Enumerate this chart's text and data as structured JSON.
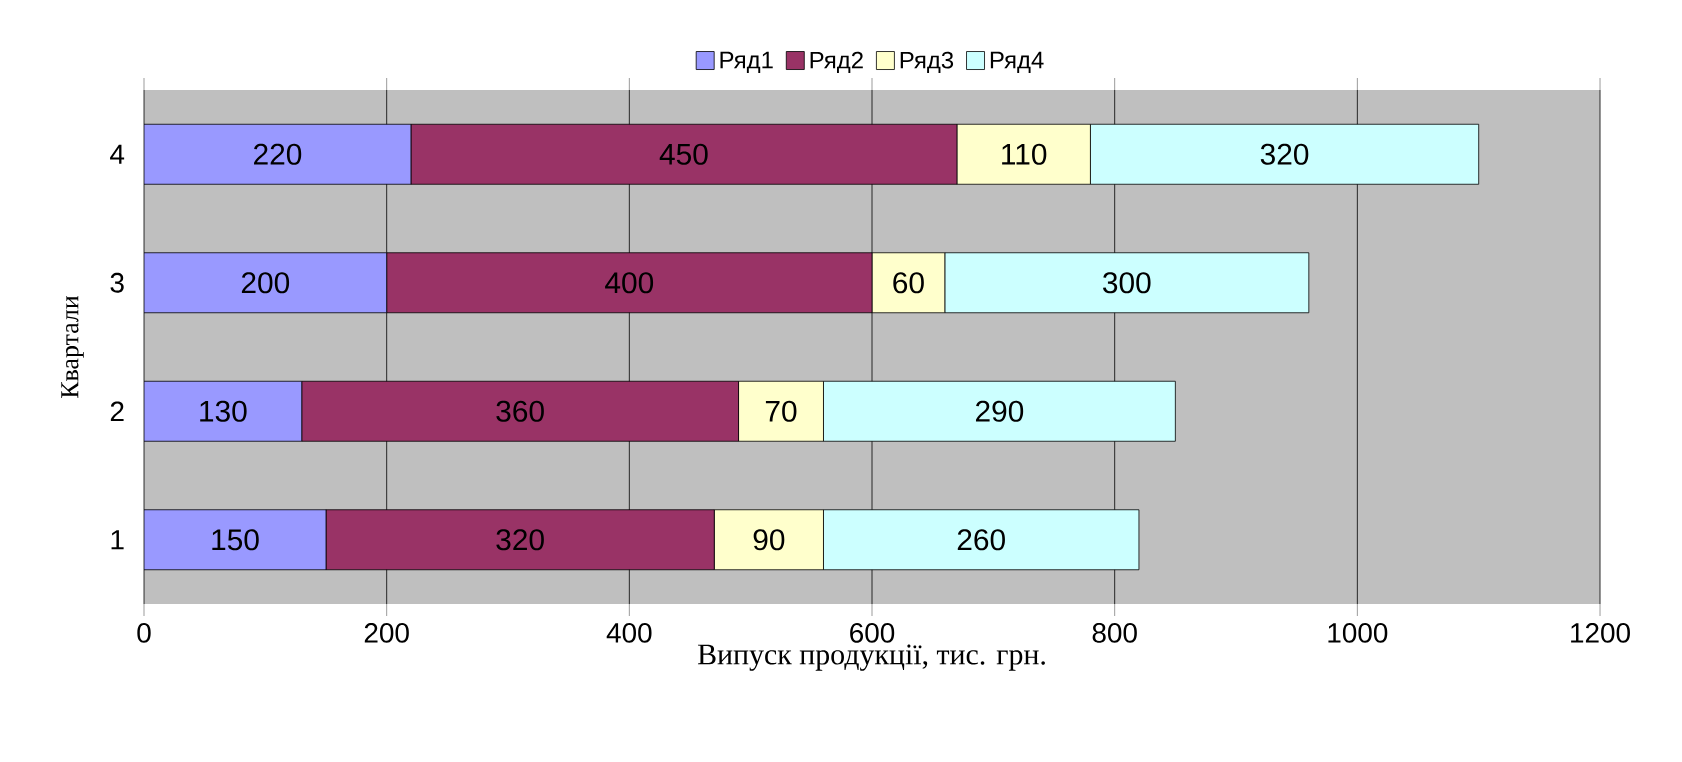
{
  "chart_data": {
    "type": "bar",
    "orientation": "horizontal",
    "stacked": true,
    "xlabel": "Випуск продукції, тис. грн.",
    "ylabel": "Квартали",
    "categories": [
      "4",
      "3",
      "2",
      "1"
    ],
    "series": [
      {
        "name": "Ряд1",
        "color": "#9999ff",
        "values": [
          220,
          200,
          130,
          150
        ]
      },
      {
        "name": "Ряд2",
        "color": "#993366",
        "values": [
          450,
          400,
          360,
          320
        ]
      },
      {
        "name": "Ряд3",
        "color": "#ffffcc",
        "values": [
          110,
          60,
          70,
          90
        ]
      },
      {
        "name": "Ряд4",
        "color": "#ccffff",
        "values": [
          320,
          300,
          290,
          260
        ]
      }
    ],
    "xlim": [
      0,
      1200
    ],
    "xticks": [
      0,
      200,
      400,
      600,
      800,
      1000,
      1200
    ],
    "grid": "x",
    "legend": "top",
    "data_labels": true
  }
}
